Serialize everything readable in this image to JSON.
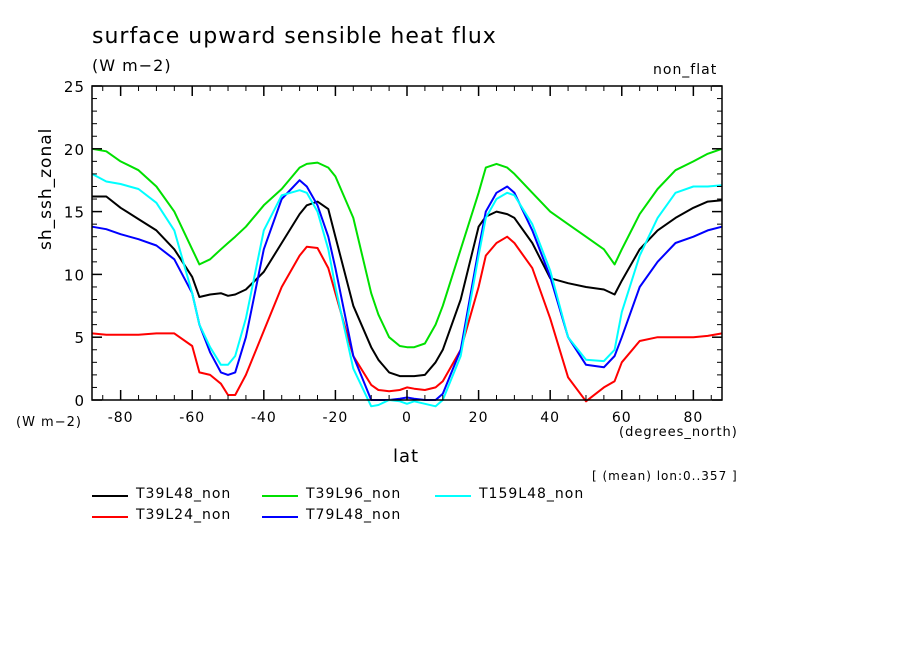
{
  "chart_data": {
    "type": "line",
    "title": "surface upward sensible heat flux",
    "subtitle": "(W m−2)",
    "tag": "non_flat",
    "xlabel": "lat",
    "x_unit": "(degrees_north)",
    "ylabel": "sh_ssh_zonal",
    "y_unit": "(W m−2)",
    "note": "[ (mean) lon:0..357 ]",
    "xlim": [
      -88,
      88
    ],
    "ylim": [
      0,
      25
    ],
    "x_ticks": [
      -80,
      -60,
      -40,
      -20,
      0,
      20,
      40,
      60,
      80
    ],
    "y_ticks": [
      0,
      5,
      10,
      15,
      20,
      25
    ],
    "x": [
      -88,
      -84,
      -80,
      -75,
      -70,
      -65,
      -60,
      -58,
      -55,
      -52,
      -50,
      -48,
      -45,
      -40,
      -35,
      -30,
      -28,
      -25,
      -22,
      -20,
      -15,
      -10,
      -8,
      -5,
      -2,
      0,
      2,
      5,
      8,
      10,
      15,
      20,
      22,
      25,
      28,
      30,
      35,
      40,
      45,
      50,
      55,
      58,
      60,
      65,
      70,
      75,
      80,
      84,
      88
    ],
    "series": [
      {
        "name": "T39L48_non",
        "color": "#000000",
        "values": [
          16.2,
          16.2,
          15.3,
          14.4,
          13.5,
          12.0,
          9.8,
          8.2,
          8.4,
          8.5,
          8.3,
          8.4,
          8.8,
          10.2,
          12.5,
          14.8,
          15.5,
          15.8,
          15.2,
          13.0,
          7.5,
          4.2,
          3.2,
          2.2,
          1.9,
          1.9,
          1.9,
          2.0,
          3.0,
          4.0,
          8.0,
          13.8,
          14.6,
          15.0,
          14.8,
          14.5,
          12.5,
          9.7,
          9.3,
          9.0,
          8.8,
          8.4,
          9.5,
          12.0,
          13.5,
          14.5,
          15.3,
          15.8,
          15.9
        ]
      },
      {
        "name": "T39L24_non",
        "color": "#ff0000",
        "values": [
          5.3,
          5.2,
          5.2,
          5.2,
          5.3,
          5.3,
          4.3,
          2.2,
          2.0,
          1.3,
          0.4,
          0.4,
          2.0,
          5.5,
          9.0,
          11.5,
          12.2,
          12.1,
          10.5,
          8.5,
          3.5,
          1.2,
          0.8,
          0.7,
          0.8,
          1.0,
          0.9,
          0.8,
          1.0,
          1.5,
          4.0,
          9.0,
          11.5,
          12.5,
          13.0,
          12.5,
          10.5,
          6.5,
          1.8,
          -0.1,
          1.0,
          1.5,
          3.0,
          4.7,
          5.0,
          5.0,
          5.0,
          5.1,
          5.3
        ]
      },
      {
        "name": "T39L96_non",
        "color": "#00e000",
        "values": [
          20.0,
          19.8,
          19.0,
          18.3,
          17.0,
          15.0,
          12.0,
          10.8,
          11.2,
          12.0,
          12.5,
          13.0,
          13.8,
          15.5,
          16.8,
          18.5,
          18.8,
          18.9,
          18.5,
          17.8,
          14.5,
          8.5,
          6.8,
          5.0,
          4.3,
          4.2,
          4.2,
          4.5,
          6.0,
          7.5,
          12.0,
          16.5,
          18.5,
          18.8,
          18.5,
          18.0,
          16.5,
          15.0,
          14.0,
          13.0,
          12.0,
          10.8,
          12.0,
          14.8,
          16.8,
          18.3,
          19.0,
          19.6,
          20.0
        ]
      },
      {
        "name": "T79L48_non",
        "color": "#0000ff",
        "values": [
          13.8,
          13.6,
          13.2,
          12.8,
          12.3,
          11.2,
          8.5,
          6.0,
          3.8,
          2.2,
          2.0,
          2.2,
          5.0,
          12.0,
          16.0,
          17.5,
          17.0,
          15.5,
          13.0,
          10.5,
          3.5,
          0.0,
          0.0,
          0.0,
          0.1,
          0.2,
          0.1,
          0.0,
          0.0,
          0.5,
          4.0,
          12.0,
          15.0,
          16.5,
          17.0,
          16.5,
          13.5,
          9.8,
          5.0,
          2.8,
          2.6,
          3.5,
          5.0,
          9.0,
          11.0,
          12.5,
          13.0,
          13.5,
          13.8
        ]
      },
      {
        "name": "T159L48_non",
        "color": "#00ffff",
        "values": [
          18.0,
          17.4,
          17.2,
          16.8,
          15.7,
          13.5,
          8.5,
          6.0,
          4.2,
          2.8,
          2.8,
          3.5,
          6.5,
          13.5,
          16.3,
          16.7,
          16.5,
          15.0,
          12.0,
          9.0,
          2.5,
          -0.5,
          -0.4,
          0.0,
          -0.1,
          -0.3,
          -0.1,
          -0.3,
          -0.5,
          0.0,
          3.5,
          11.5,
          14.5,
          16.0,
          16.5,
          16.3,
          14.0,
          10.3,
          5.0,
          3.2,
          3.1,
          4.0,
          7.0,
          11.5,
          14.5,
          16.5,
          17.0,
          17.0,
          17.1
        ]
      }
    ]
  }
}
